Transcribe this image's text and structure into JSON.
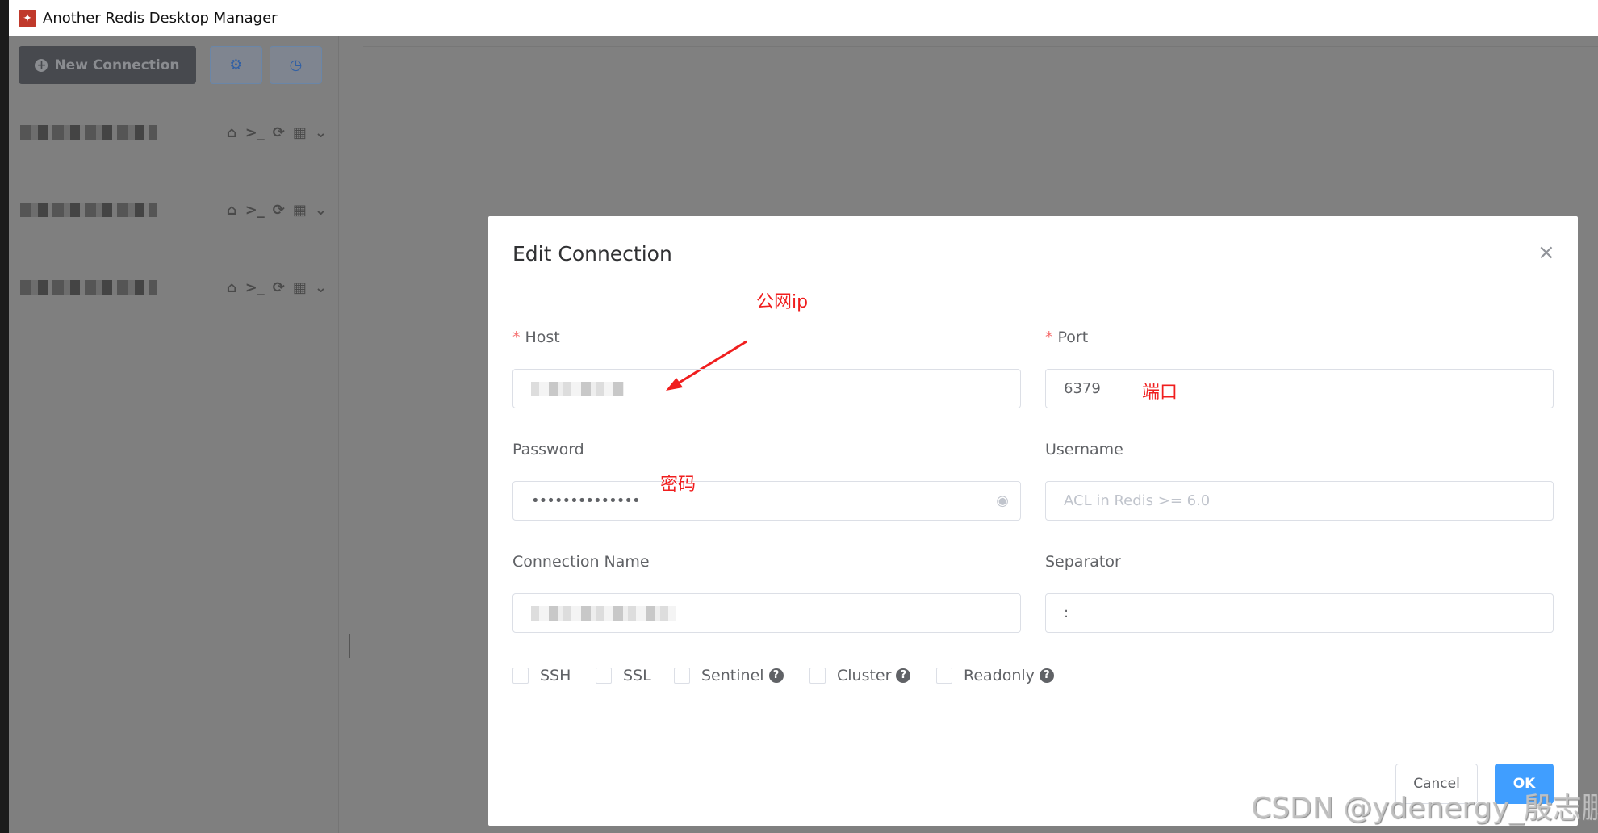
{
  "window": {
    "title": "Another Redis Desktop Manager"
  },
  "sidebar": {
    "new_connection_label": "New Connection",
    "settings_icon": "gear-icon",
    "history_icon": "clock-icon",
    "connections": [
      {
        "icons": [
          "home-icon",
          "terminal-icon",
          "refresh-icon",
          "grid-icon",
          "chevron-down-icon"
        ]
      },
      {
        "icons": [
          "home-icon",
          "terminal-icon",
          "refresh-icon",
          "grid-icon",
          "chevron-down-icon"
        ]
      },
      {
        "icons": [
          "home-icon",
          "terminal-icon",
          "refresh-icon",
          "grid-icon",
          "chevron-down-icon"
        ]
      }
    ]
  },
  "dialog": {
    "title": "Edit Connection",
    "close": "×",
    "host": {
      "label": "Host",
      "required": "*"
    },
    "port": {
      "label": "Port",
      "required": "*",
      "value": "6379"
    },
    "password": {
      "label": "Password",
      "value": "••••••••••••••"
    },
    "username": {
      "label": "Username",
      "placeholder": "ACL in Redis >= 6.0"
    },
    "connection_name": {
      "label": "Connection Name"
    },
    "separator": {
      "label": "Separator",
      "value": ":"
    },
    "options": [
      {
        "label": "SSH"
      },
      {
        "label": "SSL"
      },
      {
        "label": "Sentinel",
        "help": "?"
      },
      {
        "label": "Cluster",
        "help": "?"
      },
      {
        "label": "Readonly",
        "help": "?"
      }
    ],
    "cancel": "Cancel",
    "ok": "OK"
  },
  "annotations": {
    "host": "公网ip",
    "port": "端口",
    "password": "密码",
    "color": "#f01e1e"
  },
  "watermark": "CSDN @ydenergy_殷志鹏"
}
